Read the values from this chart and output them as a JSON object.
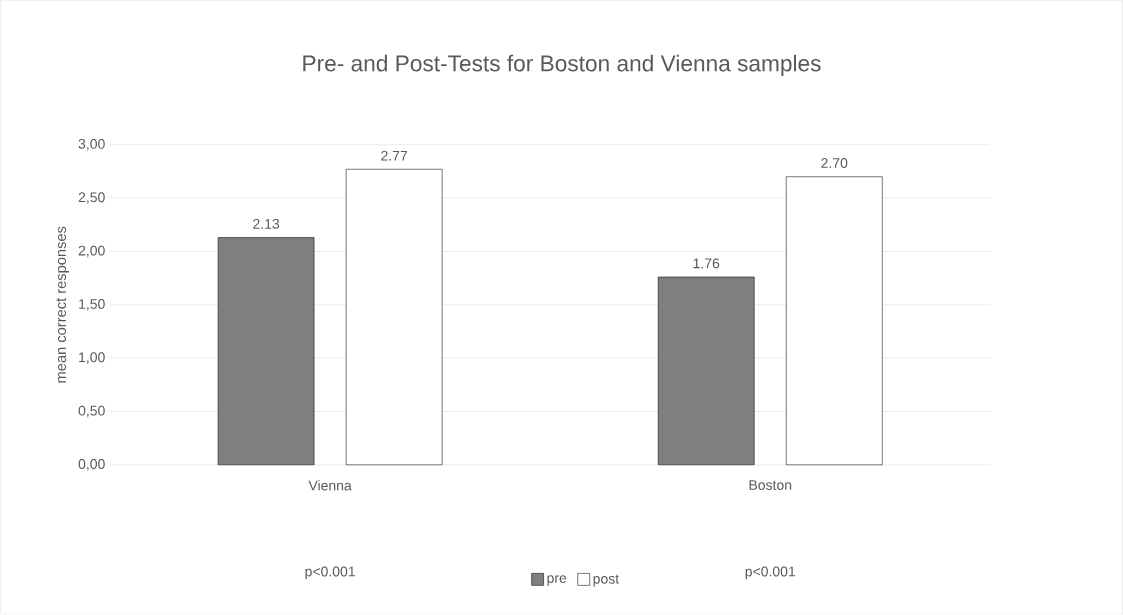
{
  "chart_data": {
    "type": "bar",
    "title": "Pre- and Post-Tests for Boston and Vienna samples",
    "ylabel": "mean correct responses",
    "categories": [
      "Vienna",
      "Boston"
    ],
    "series": [
      {
        "name": "pre",
        "color": "#7f7f7f",
        "values": [
          2.13,
          1.76
        ],
        "value_labels": [
          "2.13",
          "1.76"
        ]
      },
      {
        "name": "post",
        "color": "#ffffff",
        "values": [
          2.77,
          2.7
        ],
        "value_labels": [
          "2.77",
          "2.70"
        ]
      }
    ],
    "ylim": [
      0,
      3
    ],
    "yticks": [
      {
        "value": 0,
        "label": "0,00"
      },
      {
        "value": 0.5,
        "label": "0,50"
      },
      {
        "value": 1,
        "label": "1,00"
      },
      {
        "value": 1.5,
        "label": "1,50"
      },
      {
        "value": 2,
        "label": "2,00"
      },
      {
        "value": 2.5,
        "label": "2,50"
      },
      {
        "value": 3,
        "label": "3,00"
      }
    ],
    "grid": "y",
    "legend": "bottom",
    "annotations": [
      "p<0.001",
      "p<0.001"
    ]
  }
}
